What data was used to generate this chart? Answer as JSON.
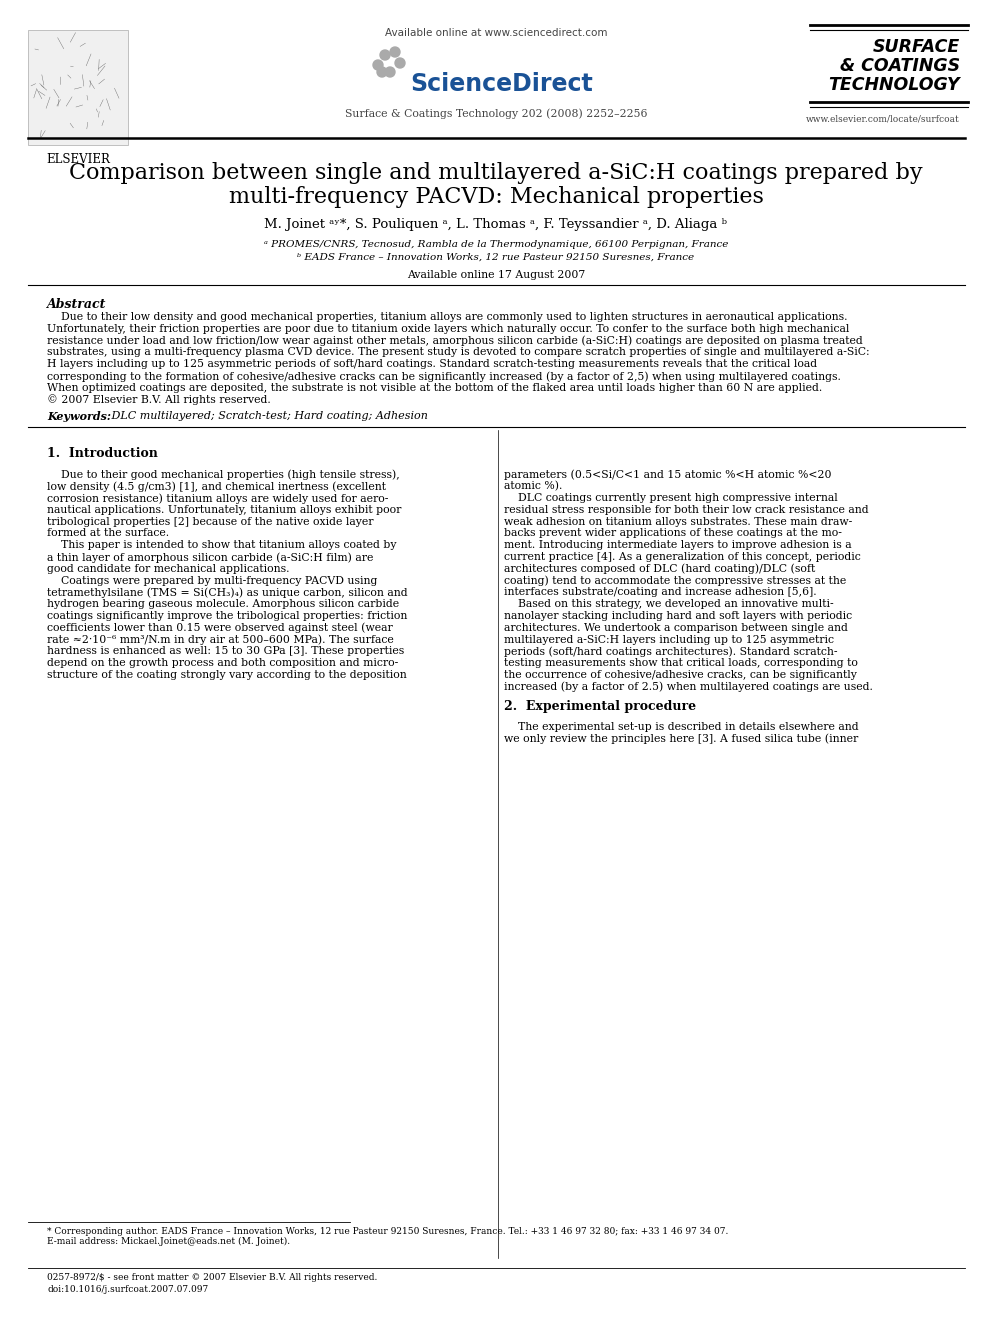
{
  "bg_color": "#ffffff",
  "text_color": "#000000",
  "journal_info": "Surface & Coatings Technology 202 (2008) 2252–2256",
  "available_online_header": "Available online at www.sciencedirect.com",
  "sciencedirect_text": "ScienceDirect",
  "journal_name_line1": "SURFACE",
  "journal_name_line2": "& COATINGS",
  "journal_name_line3": "TECHNOLOGY",
  "website": "www.elsevier.com/locate/surfcoat",
  "elsevier_text": "ELSEVIER",
  "title_line1": "Comparison between single and multilayered a-SiC:H coatings prepared by",
  "title_line2": "multi-frequency PACVD: Mechanical properties",
  "authors": "M. Joinet ᵃʸ*, S. Pouliquen ᵃ, L. Thomas ᵃ, F. Teyssandier ᵃ, D. Aliaga ᵇ",
  "affil_a": "ᵃ PROMES/CNRS, Tecnosud, Rambla de la Thermodynamique, 66100 Perpignan, France",
  "affil_b": "ᵇ EADS France – Innovation Works, 12 rue Pasteur 92150 Suresnes, France",
  "available_online_date": "Available online 17 August 2007",
  "abstract_heading": "Abstract",
  "keywords_label": "Keywords:",
  "keywords_text": " DLC multilayered; Scratch-test; Hard coating; Adhesion",
  "section1_heading": "1.  Introduction",
  "section2_heading": "2.  Experimental procedure",
  "footnote_star": "* Corresponding author. EADS France – Innovation Works, 12 rue Pasteur 92150 Suresnes, France. Tel.: +33 1 46 97 32 80; fax: +33 1 46 97 34 07.",
  "footnote_email": "E-mail address: Mickael.Joinet@eads.net (M. Joinet).",
  "bottom_issn": "0257-8972/$ - see front matter © 2007 Elsevier B.V. All rights reserved.",
  "bottom_doi": "doi:10.1016/j.surfcoat.2007.07.097",
  "abstract_lines": [
    "    Due to their low density and good mechanical properties, titanium alloys are commonly used to lighten structures in aeronautical applications.",
    "Unfortunately, their friction properties are poor due to titanium oxide layers which naturally occur. To confer to the surface both high mechanical",
    "resistance under load and low friction/low wear against other metals, amorphous silicon carbide (a-SiC:H) coatings are deposited on plasma treated",
    "substrates, using a multi-frequency plasma CVD device. The present study is devoted to compare scratch properties of single and multilayered a-SiC:",
    "H layers including up to 125 asymmetric periods of soft/hard coatings. Standard scratch-testing measurements reveals that the critical load",
    "corresponding to the formation of cohesive/adhesive cracks can be significantly increased (by a factor of 2,5) when using multilayered coatings.",
    "When optimized coatings are deposited, the substrate is not visible at the bottom of the flaked area until loads higher than 60 N are applied.",
    "© 2007 Elsevier B.V. All rights reserved."
  ],
  "col1_lines": [
    "    Due to their good mechanical properties (high tensile stress),",
    "low density (4.5 g/cm3) [1], and chemical inertness (excellent",
    "corrosion resistance) titanium alloys are widely used for aero-",
    "nautical applications. Unfortunately, titanium alloys exhibit poor",
    "tribological properties [2] because of the native oxide layer",
    "formed at the surface.",
    "    This paper is intended to show that titanium alloys coated by",
    "a thin layer of amorphous silicon carbide (a-SiC:H film) are",
    "good candidate for mechanical applications.",
    "    Coatings were prepared by multi-frequency PACVD using",
    "tetramethylsilane (TMS = Si(CH₃)₄) as unique carbon, silicon and",
    "hydrogen bearing gaseous molecule. Amorphous silicon carbide",
    "coatings significantly improve the tribological properties: friction",
    "coefficients lower than 0.15 were observed against steel (wear",
    "rate ≈2·10⁻⁶ mm³/N.m in dry air at 500–600 MPa). The surface",
    "hardness is enhanced as well: 15 to 30 GPa [3]. These properties",
    "depend on the growth process and both composition and micro-",
    "structure of the coating strongly vary according to the deposition"
  ],
  "col2_lines": [
    "parameters (0.5<Si/C<1 and 15 atomic %<H atomic %<20",
    "atomic %).",
    "    DLC coatings currently present high compressive internal",
    "residual stress responsible for both their low crack resistance and",
    "weak adhesion on titanium alloys substrates. These main draw-",
    "backs prevent wider applications of these coatings at the mo-",
    "ment. Introducing intermediate layers to improve adhesion is a",
    "current practice [4]. As a generalization of this concept, periodic",
    "architectures composed of DLC (hard coating)/DLC (soft",
    "coating) tend to accommodate the compressive stresses at the",
    "interfaces substrate/coating and increase adhesion [5,6].",
    "    Based on this strategy, we developed an innovative multi-",
    "nanolayer stacking including hard and soft layers with periodic",
    "architectures. We undertook a comparison between single and",
    "multilayered a-SiC:H layers including up to 125 asymmetric",
    "periods (soft/hard coatings architectures). Standard scratch-",
    "testing measurements show that critical loads, corresponding to",
    "the occurrence of cohesive/adhesive cracks, can be significantly",
    "increased (by a factor of 2.5) when multilayered coatings are used."
  ],
  "col2_sec2_lines": [
    "    The experimental set-up is described in details elsewhere and",
    "we only review the principles here [3]. A fused silica tube (inner"
  ]
}
